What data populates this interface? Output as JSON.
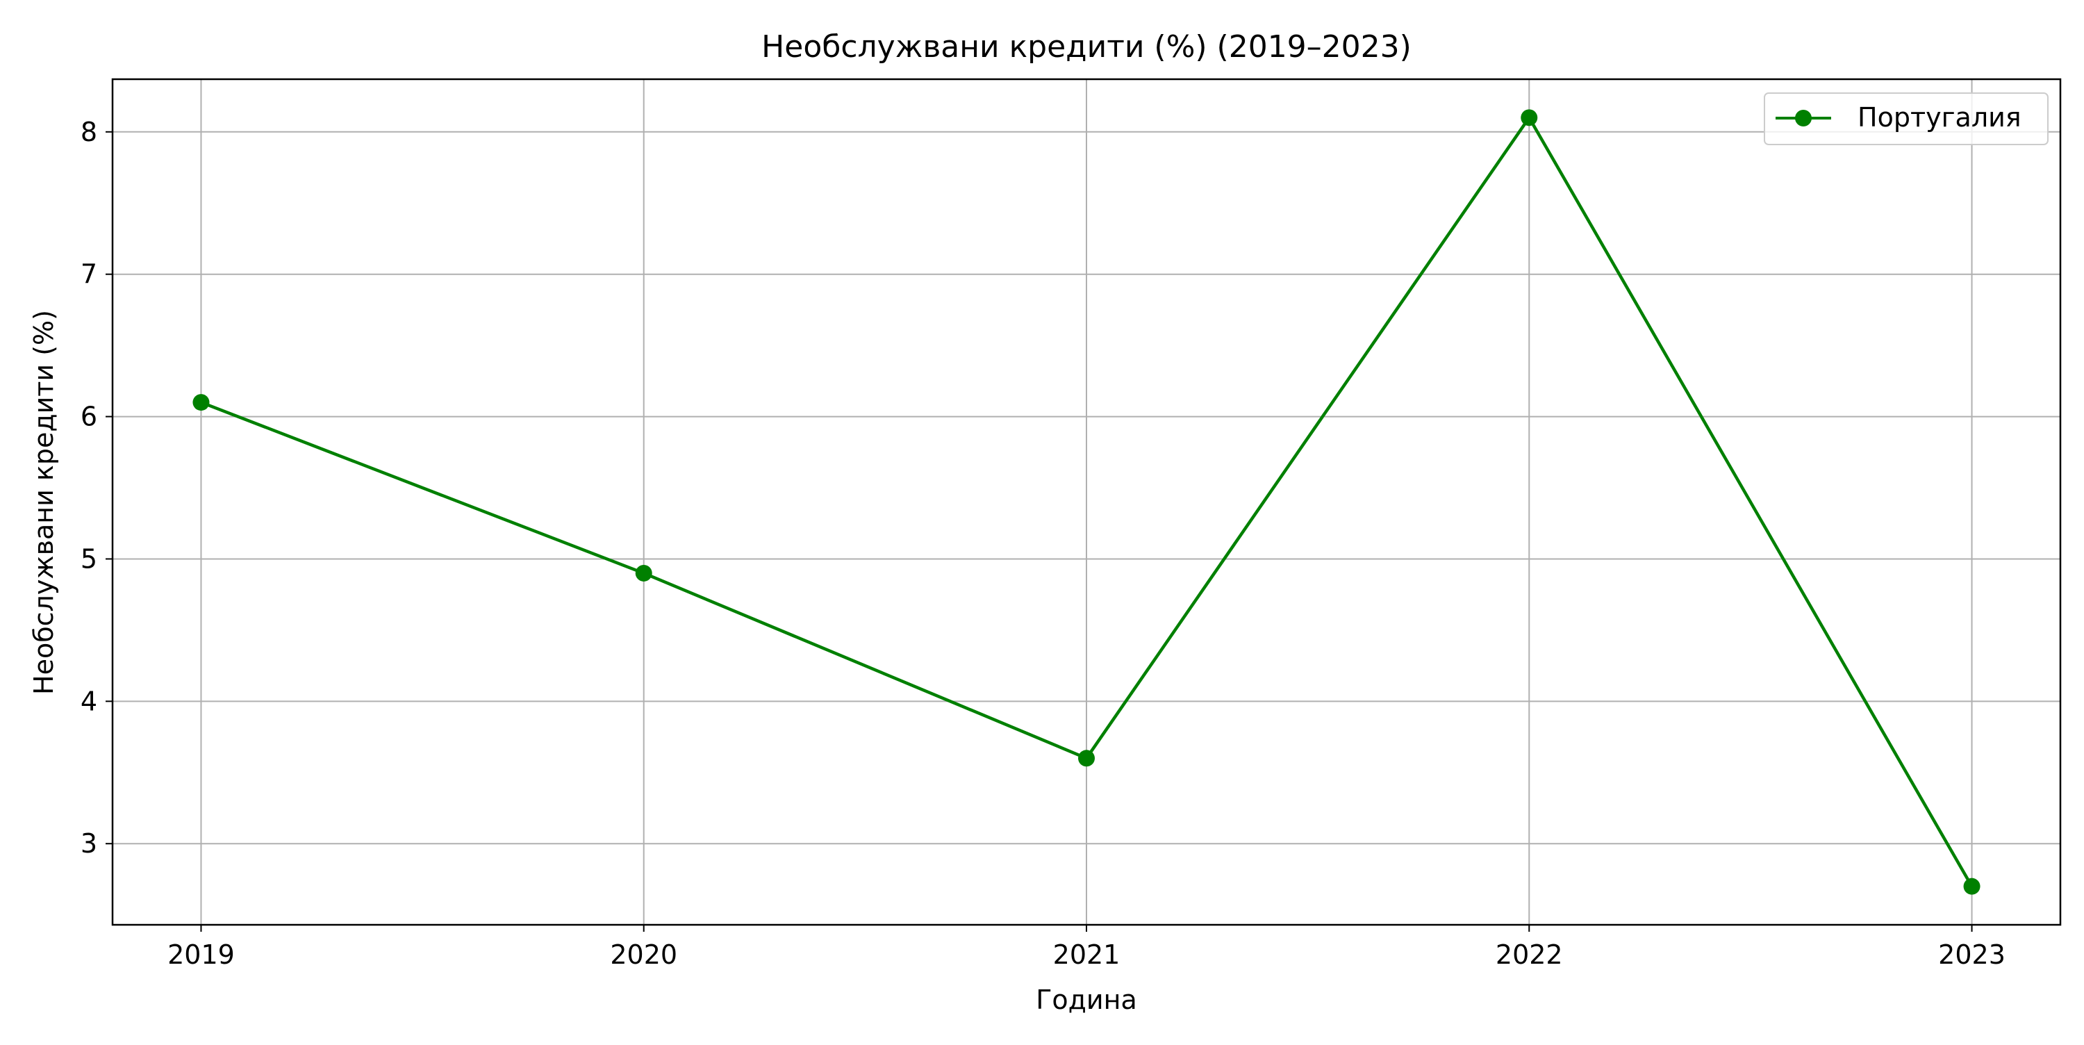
{
  "chart_data": {
    "type": "line",
    "title": "Необслужвани кредити (%) (2019–2023)",
    "xlabel": "Година",
    "ylabel": "Необслужвани кредити (%)",
    "x": [
      "2019",
      "2020",
      "2021",
      "2022",
      "2023"
    ],
    "xlim": [
      -0.2,
      4.2
    ],
    "ylim": [
      2.43,
      8.37
    ],
    "yticks": [
      3,
      4,
      5,
      6,
      7,
      8
    ],
    "grid": true,
    "legend_position": "top-right",
    "series": [
      {
        "name": "Португалия",
        "color": "#008000",
        "marker": "circle",
        "values": [
          6.1,
          4.9,
          3.6,
          8.1,
          2.7
        ]
      }
    ]
  }
}
